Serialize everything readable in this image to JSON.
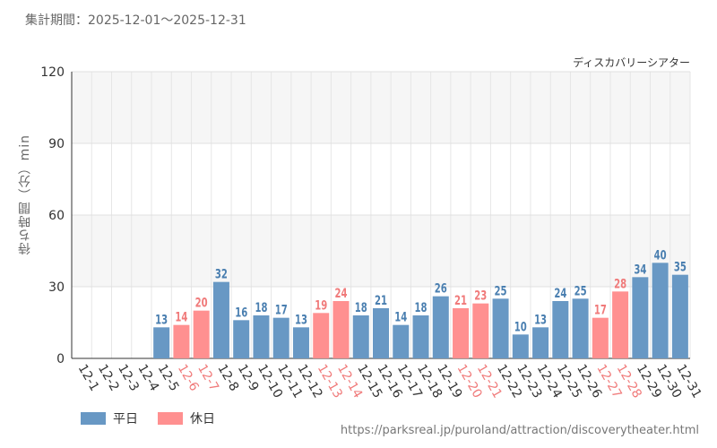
{
  "period_text": "集計期間：2025-12-01～2025-12-31",
  "source_url": "https://parksreal.jp/puroland/attraction/discoverytheater.html",
  "chart_data": {
    "type": "bar",
    "title": "ディスカバリーシアター",
    "ylabel": "待ち時間（分）min",
    "xlabel": "",
    "ylim": [
      0,
      120
    ],
    "yticks": [
      0,
      30,
      60,
      90,
      120
    ],
    "categories": [
      "12-1",
      "12-2",
      "12-3",
      "12-4",
      "12-5",
      "12-6",
      "12-7",
      "12-8",
      "12-9",
      "12-10",
      "12-11",
      "12-12",
      "12-13",
      "12-14",
      "12-15",
      "12-16",
      "12-17",
      "12-18",
      "12-19",
      "12-20",
      "12-21",
      "12-22",
      "12-23",
      "12-24",
      "12-25",
      "12-26",
      "12-27",
      "12-28",
      "12-29",
      "12-30",
      "12-31"
    ],
    "values": [
      null,
      null,
      null,
      null,
      13,
      14,
      20,
      32,
      16,
      18,
      17,
      13,
      19,
      24,
      18,
      21,
      14,
      18,
      26,
      21,
      23,
      25,
      10,
      13,
      24,
      25,
      17,
      28,
      34,
      40,
      35
    ],
    "day_type": [
      "weekday",
      "weekday",
      "weekday",
      "weekday",
      "weekday",
      "holiday",
      "holiday",
      "weekday",
      "weekday",
      "weekday",
      "weekday",
      "weekday",
      "holiday",
      "holiday",
      "weekday",
      "weekday",
      "weekday",
      "weekday",
      "weekday",
      "holiday",
      "holiday",
      "weekday",
      "weekday",
      "weekday",
      "weekday",
      "weekday",
      "holiday",
      "holiday",
      "weekday",
      "weekday",
      "weekday"
    ],
    "legend": [
      {
        "key": "weekday",
        "label": "平日",
        "color": "#6898c4"
      },
      {
        "key": "holiday",
        "label": "休日",
        "color": "#ff9090"
      }
    ],
    "label_colors": {
      "weekday": "#4a7fb0",
      "holiday": "#f07a7a"
    }
  }
}
